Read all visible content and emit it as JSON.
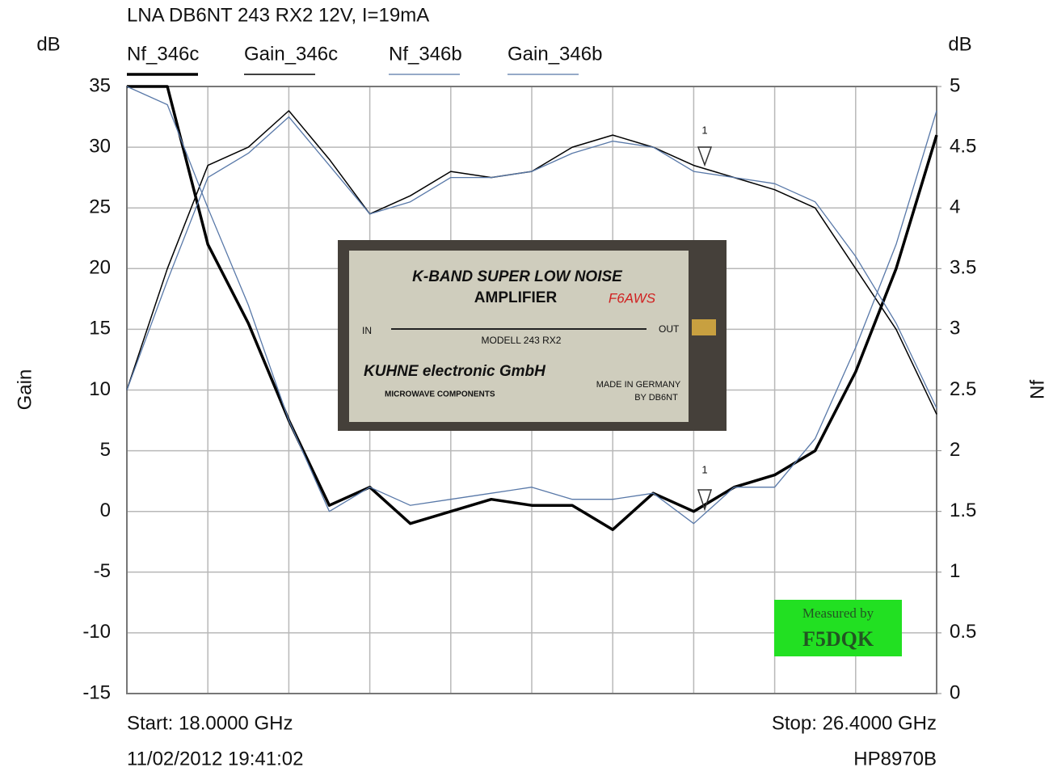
{
  "chart_data": {
    "type": "line",
    "title": "LNA DB6NT 243 RX2 12V, I=19mA",
    "y_unit": "dB",
    "y2_unit": "dB",
    "y_label": "Gain",
    "y2_label": "Nf",
    "x": [
      18,
      18.42,
      18.84,
      19.26,
      19.68,
      20.1,
      20.52,
      20.94,
      21.36,
      21.78,
      22.2,
      22.62,
      23.04,
      23.46,
      23.88,
      24.3,
      24.72,
      25.14,
      25.56,
      25.98,
      26.4
    ],
    "xlim": [
      18,
      26.4
    ],
    "ylim": [
      -15,
      35
    ],
    "yticks": [
      -15,
      -10,
      -5,
      0,
      5,
      10,
      15,
      20,
      25,
      30,
      35
    ],
    "y2lim": [
      0,
      5
    ],
    "y2ticks": [
      0,
      0.5,
      1,
      1.5,
      2,
      2.5,
      3,
      3.5,
      4,
      4.5,
      5
    ],
    "grid": true,
    "series": [
      {
        "name": "Nf_346c",
        "color": "#000000",
        "axis": "y2",
        "values": [
          5,
          5,
          3.7,
          3.05,
          2.25,
          1.55,
          1.7,
          1.4,
          1.5,
          1.6,
          1.55,
          1.55,
          1.35,
          1.65,
          1.5,
          1.7,
          1.8,
          2,
          2.65,
          3.5,
          4.6
        ]
      },
      {
        "name": "Gain_346c",
        "color": "#000000",
        "values": [
          10,
          20,
          28.5,
          30,
          33,
          29,
          24.5,
          26,
          28,
          27.5,
          28,
          30,
          31,
          30,
          28.5,
          27.5,
          26.5,
          25,
          20,
          15,
          8
        ]
      },
      {
        "name": "Nf_346b",
        "color": "#5878a8",
        "axis": "y2",
        "values": [
          5,
          4.85,
          4,
          3.2,
          2.25,
          1.5,
          1.7,
          1.55,
          1.6,
          1.65,
          1.7,
          1.6,
          1.6,
          1.65,
          1.4,
          1.7,
          1.7,
          2.1,
          2.85,
          3.7,
          4.8
        ]
      },
      {
        "name": "Gain_346b",
        "color": "#5878a8",
        "values": [
          10,
          19,
          27.5,
          29.5,
          32.5,
          28.5,
          24.5,
          25.5,
          27.5,
          27.5,
          28,
          29.5,
          30.5,
          30,
          28,
          27.5,
          27,
          25.5,
          21,
          15.5,
          8.5
        ]
      }
    ],
    "markers": [
      "1",
      "1"
    ],
    "start_label": "Start: 18.0000 GHz",
    "stop_label": "Stop: 26.4000 GHz",
    "timestamp": "11/02/2012 19:41:02",
    "instrument": "HP8970B",
    "photo": {
      "line1": "K-BAND SUPER LOW NOISE",
      "line2": "AMPLIFIER",
      "handwritten": "F6AWS",
      "in": "IN",
      "out": "OUT",
      "model": "MODELL 243 RX2",
      "brand": "KUHNE electronic GmbH",
      "sub": "MICROWAVE COMPONENTS",
      "made1": "MADE IN GERMANY",
      "made2": "BY DB6NT"
    },
    "stamp": {
      "line1": "Measured by",
      "line2": "F5DQK"
    }
  }
}
